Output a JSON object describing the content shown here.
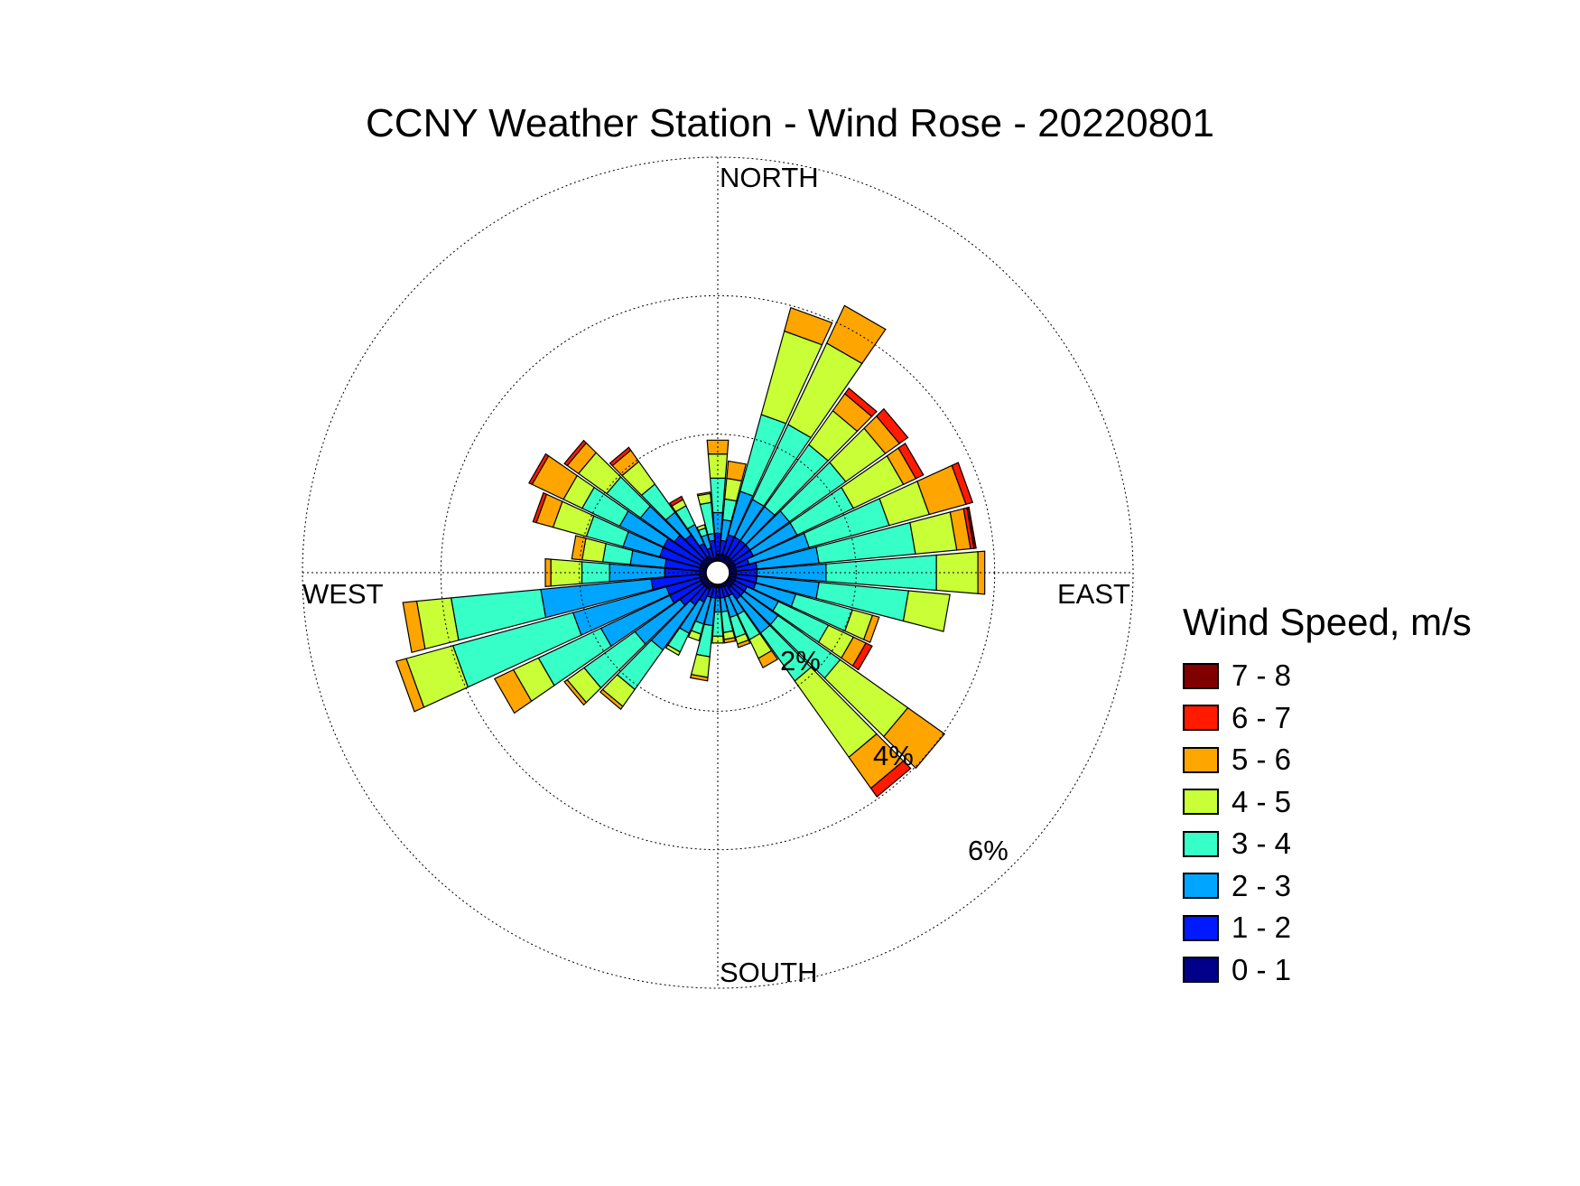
{
  "chart_data": {
    "type": "wind-rose",
    "title": "CCNY Weather Station - Wind Rose - 20220801",
    "direction_labels": {
      "north": "NORTH",
      "east": "EAST",
      "south": "SOUTH",
      "west": "WEST"
    },
    "ring_labels": [
      "2%",
      "4%",
      "6%"
    ],
    "ring_values": [
      2,
      4,
      6
    ],
    "rlim": [
      0,
      6
    ],
    "grid": true,
    "legend": {
      "title": "Wind Speed, m/s",
      "placement": "right",
      "bins": [
        {
          "label": "7 - 8",
          "color": "#800000"
        },
        {
          "label": "6 - 7",
          "color": "#ff1a00"
        },
        {
          "label": "5 - 6",
          "color": "#ffa500"
        },
        {
          "label": "4 - 5",
          "color": "#c8ff37"
        },
        {
          "label": "3 - 4",
          "color": "#37ffc8"
        },
        {
          "label": "2 - 3",
          "color": "#00a5ff"
        },
        {
          "label": "1 - 2",
          "color": "#0019ff"
        },
        {
          "label": "0 - 1",
          "color": "#00008a"
        }
      ]
    },
    "bin_order_inner_to_outer": [
      "0 - 1",
      "1 - 2",
      "2 - 3",
      "3 - 4",
      "4 - 5",
      "5 - 6",
      "6 - 7",
      "7 - 8"
    ],
    "directions_deg": [
      0,
      10,
      20,
      30,
      40,
      50,
      60,
      70,
      80,
      90,
      100,
      110,
      120,
      130,
      140,
      150,
      160,
      170,
      180,
      190,
      200,
      210,
      220,
      230,
      240,
      250,
      260,
      270,
      280,
      290,
      300,
      310,
      320,
      330,
      340,
      350
    ],
    "cumulative_percent": [
      [
        0.1,
        0.4,
        0.7,
        1.2,
        1.55,
        1.75,
        1.75,
        1.75
      ],
      [
        0.1,
        0.3,
        0.6,
        0.9,
        1.2,
        1.45,
        1.45,
        1.45
      ],
      [
        0.1,
        0.4,
        1.05,
        2.2,
        3.45,
        3.8,
        3.8,
        3.8
      ],
      [
        0.1,
        0.4,
        1.0,
        2.2,
        3.5,
        4.1,
        4.1,
        4.1
      ],
      [
        0.1,
        0.4,
        1.0,
        2.1,
        2.7,
        3.0,
        3.1,
        3.1
      ],
      [
        0.1,
        0.4,
        1.1,
        2.1,
        2.8,
        3.05,
        3.2,
        3.2
      ],
      [
        0.1,
        0.4,
        1.1,
        2.0,
        2.8,
        3.0,
        3.12,
        3.12
      ],
      [
        0.1,
        0.3,
        1.2,
        2.4,
        3.0,
        3.55,
        3.65,
        3.65
      ],
      [
        0.1,
        0.4,
        1.3,
        2.7,
        3.3,
        3.5,
        3.55,
        3.58
      ],
      [
        0.1,
        0.4,
        1.4,
        3.0,
        3.6,
        3.7,
        3.7,
        3.7
      ],
      [
        0.1,
        0.4,
        1.3,
        2.6,
        3.2,
        3.2,
        3.2,
        3.2
      ],
      [
        0.1,
        0.4,
        1.0,
        1.85,
        2.15,
        2.25,
        2.25,
        2.25
      ],
      [
        0.1,
        0.3,
        0.8,
        1.6,
        2.0,
        2.2,
        2.3,
        2.3
      ],
      [
        0.1,
        0.3,
        0.9,
        2.0,
        3.2,
        3.85,
        3.85,
        3.85
      ],
      [
        0.1,
        0.3,
        0.9,
        1.75,
        3.1,
        3.65,
        3.8,
        3.8
      ],
      [
        0.05,
        0.2,
        0.5,
        0.9,
        1.2,
        1.35,
        1.35,
        1.35
      ],
      [
        0.05,
        0.2,
        0.5,
        0.8,
        0.9,
        0.95,
        0.95,
        0.95
      ],
      [
        0.05,
        0.2,
        0.4,
        0.7,
        0.8,
        0.85,
        0.85,
        0.85
      ],
      [
        0.05,
        0.2,
        0.4,
        0.75,
        0.85,
        0.85,
        0.85,
        0.85
      ],
      [
        0.05,
        0.2,
        0.6,
        1.05,
        1.35,
        1.4,
        1.4,
        1.4
      ],
      [
        0.05,
        0.2,
        0.6,
        0.75,
        0.85,
        0.85,
        0.85,
        0.85
      ],
      [
        0.1,
        0.3,
        0.8,
        1.1,
        1.15,
        1.15,
        1.15,
        1.15
      ],
      [
        0.1,
        0.4,
        1.2,
        1.9,
        2.2,
        2.25,
        2.25,
        2.25
      ],
      [
        0.1,
        0.5,
        1.3,
        2.2,
        2.5,
        2.55,
        2.55,
        2.55
      ],
      [
        0.1,
        0.6,
        1.7,
        2.7,
        3.1,
        3.4,
        3.4,
        3.4
      ],
      [
        0.1,
        0.6,
        2.0,
        3.8,
        4.5,
        4.65,
        4.65,
        4.65
      ],
      [
        0.1,
        0.8,
        2.4,
        3.7,
        4.2,
        4.4,
        4.4,
        4.4
      ],
      [
        0.1,
        0.6,
        1.4,
        1.8,
        2.25,
        2.33,
        2.33,
        2.33
      ],
      [
        0.1,
        0.6,
        1.1,
        1.5,
        1.8,
        1.95,
        1.95,
        1.95
      ],
      [
        0.1,
        0.7,
        1.25,
        1.8,
        2.3,
        2.55,
        2.6,
        2.6
      ],
      [
        0.1,
        0.7,
        1.4,
        2.0,
        2.3,
        2.8,
        2.85,
        2.85
      ],
      [
        0.1,
        0.6,
        1.2,
        1.8,
        2.3,
        2.5,
        2.55,
        2.55
      ],
      [
        0.1,
        0.5,
        0.9,
        1.4,
        1.8,
        2.0,
        2.05,
        2.05
      ],
      [
        0.1,
        0.3,
        0.6,
        0.9,
        1.0,
        1.0,
        1.05,
        1.05
      ],
      [
        0.05,
        0.2,
        0.4,
        0.5,
        0.55,
        0.55,
        0.55,
        0.55
      ],
      [
        0.05,
        0.3,
        0.4,
        0.85,
        0.98,
        1.0,
        1.0,
        1.0
      ]
    ]
  }
}
